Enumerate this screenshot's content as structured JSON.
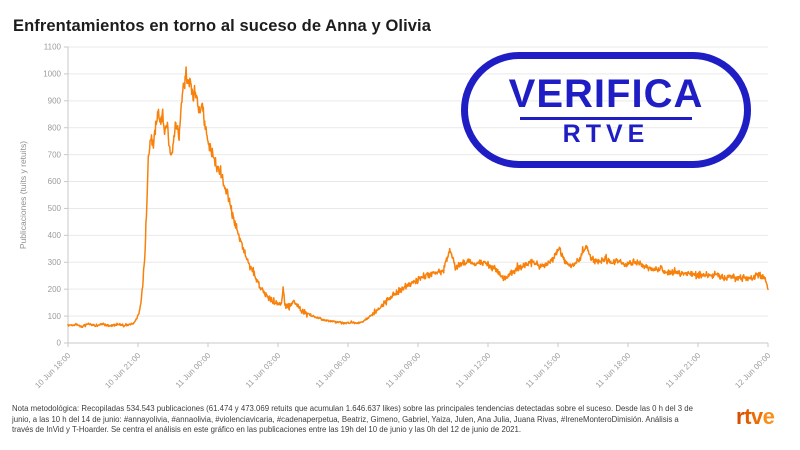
{
  "title": "Enfrentamientos en torno al suceso de Anna y Olivia",
  "badge": {
    "line1": "VERIFICA",
    "line2": "RTVE",
    "color": "#1f1ec4"
  },
  "footer": {
    "note_lines": [
      "Nota metodológica: Recopiladas 534.543 publicaciones (61.474 y 473.069 retuits que acumulan 1.646.637 likes) sobre las principales tendencias detectadas sobre el suceso. Desde las 0 h del 3 de",
      "junio, a las 10 h del 14 de junio: #annayolivia, #annaolivia, #violenciavicaria, #cadenaperpetua, Beatriz, Gimeno, Gabriel, Yaiza, Julen, Ana Julia, Juana Rivas, #IreneMonteroDimisión. Análisis a",
      "través de InVid y T-Hoarder. Se centra el análisis en este gráfico en las publicaciones entre las 19h del 10 de junio y las 0h del 12 de junio de 2021."
    ],
    "logo_letters": [
      {
        "ch": "r",
        "color": "#d94e00"
      },
      {
        "ch": "t",
        "color": "#e25c00"
      },
      {
        "ch": "v",
        "color": "#ec6d05"
      },
      {
        "ch": "e",
        "color": "#f88f1d"
      }
    ]
  },
  "chart_data": {
    "type": "line",
    "title": "Enfrentamientos en torno al suceso de Anna y Olivia",
    "xlabel": "",
    "ylabel": "Publicaciones (tuits y retuits)",
    "ylim": [
      0,
      1100
    ],
    "ytick_step": 100,
    "grid": true,
    "legend": "none",
    "line_color": "#f7810b",
    "x_unit": "hours since 10 Jun 18:00",
    "xlim_hours": [
      0,
      30
    ],
    "xtick_hours": [
      0,
      3,
      6,
      9,
      12,
      15,
      18,
      21,
      24,
      27,
      30
    ],
    "xtick_labels": [
      "10 Jun 18:00",
      "10 Jun 21:00",
      "11 Jun 00:00",
      "11 Jun 03:00",
      "11 Jun 06:00",
      "11 Jun 09:00",
      "11 Jun 12:00",
      "11 Jun 15:00",
      "11 Jun 18:00",
      "11 Jun 21:00",
      "12 Jun 00:00"
    ],
    "noise_note": "minute-level noisy series; anchor points below read off the plot",
    "series": [
      {
        "name": "Publicaciones",
        "points": [
          [
            0,
            65
          ],
          [
            0.3,
            68
          ],
          [
            0.6,
            62
          ],
          [
            0.9,
            70
          ],
          [
            1.2,
            64
          ],
          [
            1.5,
            70
          ],
          [
            1.8,
            63
          ],
          [
            2.1,
            70
          ],
          [
            2.4,
            64
          ],
          [
            2.6,
            68
          ],
          [
            2.8,
            72
          ],
          [
            2.95,
            90
          ],
          [
            3.1,
            130
          ],
          [
            3.2,
            210
          ],
          [
            3.3,
            340
          ],
          [
            3.38,
            520
          ],
          [
            3.45,
            700
          ],
          [
            3.55,
            760
          ],
          [
            3.65,
            730
          ],
          [
            3.75,
            800
          ],
          [
            3.85,
            870
          ],
          [
            3.95,
            820
          ],
          [
            4.05,
            860
          ],
          [
            4.15,
            780
          ],
          [
            4.25,
            820
          ],
          [
            4.35,
            720
          ],
          [
            4.45,
            700
          ],
          [
            4.55,
            780
          ],
          [
            4.65,
            820
          ],
          [
            4.75,
            760
          ],
          [
            4.85,
            880
          ],
          [
            4.95,
            960
          ],
          [
            5.05,
            1005
          ],
          [
            5.15,
            950
          ],
          [
            5.25,
            980
          ],
          [
            5.35,
            920
          ],
          [
            5.45,
            940
          ],
          [
            5.55,
            900
          ],
          [
            5.65,
            860
          ],
          [
            5.75,
            890
          ],
          [
            5.85,
            820
          ],
          [
            5.95,
            760
          ],
          [
            6.2,
            700
          ],
          [
            6.5,
            640
          ],
          [
            6.8,
            560
          ],
          [
            7.0,
            500
          ],
          [
            7.2,
            430
          ],
          [
            7.4,
            380
          ],
          [
            7.6,
            330
          ],
          [
            7.8,
            285
          ],
          [
            8.0,
            250
          ],
          [
            8.2,
            215
          ],
          [
            8.4,
            190
          ],
          [
            8.6,
            170
          ],
          [
            8.8,
            155
          ],
          [
            9.0,
            148
          ],
          [
            9.15,
            145
          ],
          [
            9.22,
            205
          ],
          [
            9.3,
            140
          ],
          [
            9.5,
            135
          ],
          [
            9.7,
            158
          ],
          [
            9.85,
            138
          ],
          [
            10.0,
            120
          ],
          [
            10.3,
            108
          ],
          [
            10.6,
            95
          ],
          [
            10.9,
            88
          ],
          [
            11.2,
            82
          ],
          [
            11.5,
            78
          ],
          [
            11.8,
            74
          ],
          [
            12.1,
            76
          ],
          [
            12.4,
            72
          ],
          [
            12.6,
            78
          ],
          [
            12.8,
            90
          ],
          [
            13.1,
            110
          ],
          [
            13.4,
            135
          ],
          [
            13.7,
            160
          ],
          [
            14.0,
            180
          ],
          [
            14.3,
            200
          ],
          [
            14.6,
            215
          ],
          [
            14.9,
            230
          ],
          [
            15.2,
            245
          ],
          [
            15.5,
            255
          ],
          [
            15.8,
            262
          ],
          [
            16.1,
            270
          ],
          [
            16.37,
            355
          ],
          [
            16.6,
            280
          ],
          [
            16.9,
            295
          ],
          [
            17.2,
            305
          ],
          [
            17.5,
            290
          ],
          [
            17.8,
            300
          ],
          [
            18.1,
            285
          ],
          [
            18.4,
            268
          ],
          [
            18.7,
            235
          ],
          [
            19.0,
            262
          ],
          [
            19.3,
            278
          ],
          [
            19.6,
            290
          ],
          [
            19.9,
            300
          ],
          [
            20.2,
            285
          ],
          [
            20.5,
            295
          ],
          [
            20.8,
            310
          ],
          [
            21.05,
            350
          ],
          [
            21.3,
            300
          ],
          [
            21.6,
            290
          ],
          [
            21.9,
            305
          ],
          [
            22.2,
            360
          ],
          [
            22.45,
            310
          ],
          [
            22.7,
            300
          ],
          [
            23.0,
            310
          ],
          [
            23.3,
            295
          ],
          [
            23.6,
            305
          ],
          [
            23.9,
            290
          ],
          [
            24.2,
            300
          ],
          [
            24.5,
            295
          ],
          [
            24.8,
            280
          ],
          [
            25.1,
            270
          ],
          [
            25.4,
            278
          ],
          [
            25.7,
            262
          ],
          [
            26.0,
            268
          ],
          [
            26.3,
            255
          ],
          [
            26.6,
            262
          ],
          [
            26.9,
            250
          ],
          [
            27.2,
            258
          ],
          [
            27.5,
            248
          ],
          [
            27.8,
            255
          ],
          [
            28.1,
            242
          ],
          [
            28.4,
            250
          ],
          [
            28.7,
            238
          ],
          [
            29.0,
            246
          ],
          [
            29.3,
            240
          ],
          [
            29.6,
            252
          ],
          [
            29.9,
            238
          ],
          [
            30.0,
            205
          ]
        ]
      }
    ]
  }
}
